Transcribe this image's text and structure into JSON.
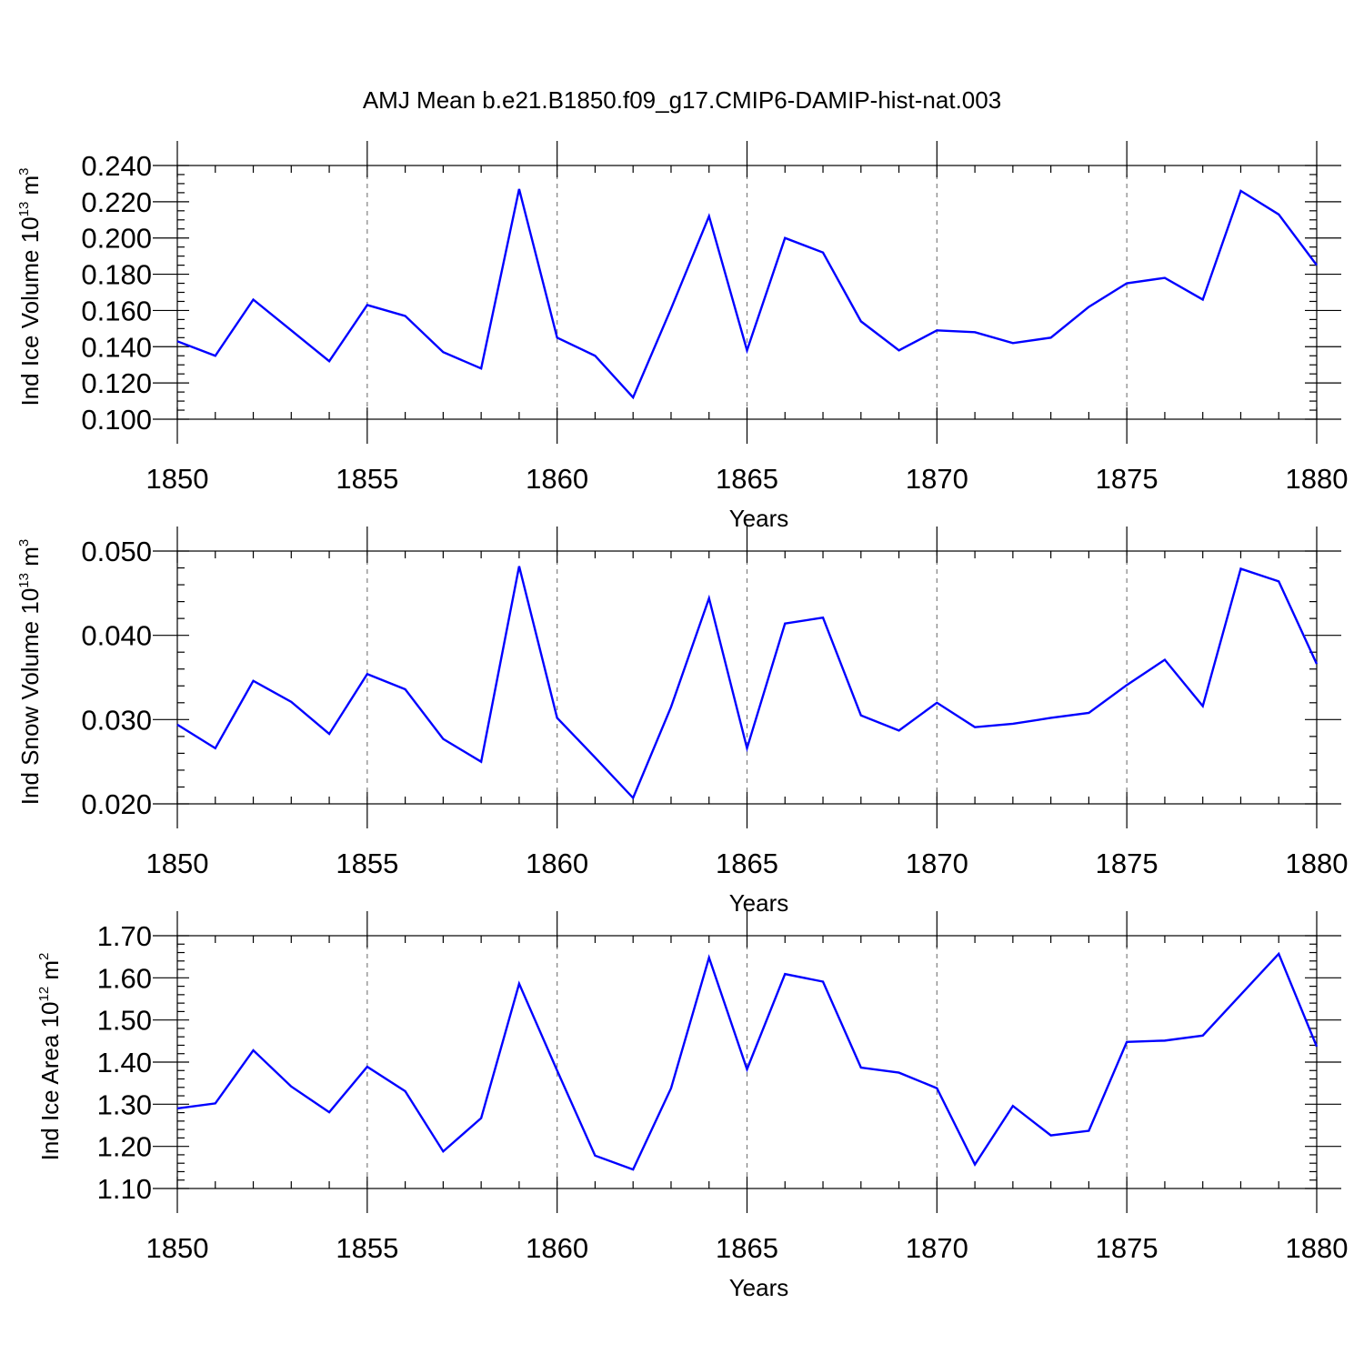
{
  "title": "AMJ Mean b.e21.B1850.f09_g17.CMIP6-DAMIP-hist-nat.003",
  "colors": {
    "line": "#0000ff",
    "axis": "#000000",
    "grid": "#808080",
    "background": "#ffffff"
  },
  "chart_data": [
    {
      "type": "line",
      "xlabel": "Years",
      "ylabel_parts": {
        "base": "Ind Ice Volume 10",
        "sup": "13",
        "unit": " m",
        "unit_sup": "3"
      },
      "xlim": [
        1850,
        1880
      ],
      "ylim": [
        0.1,
        0.24
      ],
      "x_ticks": [
        1850,
        1855,
        1860,
        1865,
        1870,
        1875,
        1880
      ],
      "x_tick_labels": [
        "1850",
        "1855",
        "1860",
        "1865",
        "1870",
        "1875",
        "1880"
      ],
      "y_ticks": [
        0.1,
        0.12,
        0.14,
        0.16,
        0.18,
        0.2,
        0.22,
        0.24
      ],
      "y_tick_labels": [
        "0.100",
        "0.120",
        "0.140",
        "0.160",
        "0.180",
        "0.200",
        "0.220",
        "0.240"
      ],
      "y_minor_step": 0.005,
      "grid": "vertical-dashed-at-major-x",
      "series": [
        {
          "name": "Ind Ice Volume",
          "x": [
            1850,
            1851,
            1852,
            1853,
            1854,
            1855,
            1856,
            1857,
            1858,
            1859,
            1860,
            1861,
            1862,
            1863,
            1864,
            1865,
            1866,
            1867,
            1868,
            1869,
            1870,
            1871,
            1872,
            1873,
            1874,
            1875,
            1876,
            1877,
            1878,
            1879,
            1880
          ],
          "values": [
            0.143,
            0.135,
            0.166,
            0.149,
            0.132,
            0.163,
            0.157,
            0.137,
            0.128,
            0.227,
            0.145,
            0.135,
            0.112,
            0.161,
            0.212,
            0.138,
            0.2,
            0.192,
            0.154,
            0.138,
            0.149,
            0.148,
            0.142,
            0.145,
            0.162,
            0.175,
            0.178,
            0.166,
            0.226,
            0.213,
            0.185
          ]
        }
      ]
    },
    {
      "type": "line",
      "xlabel": "Years",
      "ylabel_parts": {
        "base": "Ind Snow Volume 10",
        "sup": "13",
        "unit": " m",
        "unit_sup": "3"
      },
      "xlim": [
        1850,
        1880
      ],
      "ylim": [
        0.02,
        0.05
      ],
      "x_ticks": [
        1850,
        1855,
        1860,
        1865,
        1870,
        1875,
        1880
      ],
      "x_tick_labels": [
        "1850",
        "1855",
        "1860",
        "1865",
        "1870",
        "1875",
        "1880"
      ],
      "y_ticks": [
        0.02,
        0.03,
        0.04,
        0.05
      ],
      "y_tick_labels": [
        "0.020",
        "0.030",
        "0.040",
        "0.050"
      ],
      "y_minor_step": 0.002,
      "grid": "vertical-dashed-at-major-x",
      "series": [
        {
          "name": "Ind Snow Volume",
          "x": [
            1850,
            1851,
            1852,
            1853,
            1854,
            1855,
            1856,
            1857,
            1858,
            1859,
            1860,
            1861,
            1862,
            1863,
            1864,
            1865,
            1866,
            1867,
            1868,
            1869,
            1870,
            1871,
            1872,
            1873,
            1874,
            1875,
            1876,
            1877,
            1878,
            1879,
            1880
          ],
          "values": [
            0.0294,
            0.0266,
            0.0346,
            0.0321,
            0.0283,
            0.0354,
            0.0336,
            0.0277,
            0.025,
            0.0482,
            0.0302,
            0.0255,
            0.0207,
            0.0315,
            0.0444,
            0.0266,
            0.0414,
            0.0421,
            0.0305,
            0.0287,
            0.032,
            0.0291,
            0.0295,
            0.0302,
            0.0308,
            0.0341,
            0.0371,
            0.0316,
            0.0479,
            0.0464,
            0.0366
          ]
        }
      ]
    },
    {
      "type": "line",
      "xlabel": "Years",
      "ylabel_parts": {
        "base": "Ind Ice Area 10",
        "sup": "12",
        "unit": " m",
        "unit_sup": "2"
      },
      "xlim": [
        1850,
        1880
      ],
      "ylim": [
        1.1,
        1.7
      ],
      "x_ticks": [
        1850,
        1855,
        1860,
        1865,
        1870,
        1875,
        1880
      ],
      "x_tick_labels": [
        "1850",
        "1855",
        "1860",
        "1865",
        "1870",
        "1875",
        "1880"
      ],
      "y_ticks": [
        1.1,
        1.2,
        1.3,
        1.4,
        1.5,
        1.6,
        1.7
      ],
      "y_tick_labels": [
        "1.10",
        "1.20",
        "1.30",
        "1.40",
        "1.50",
        "1.60",
        "1.70"
      ],
      "y_minor_step": 0.02,
      "grid": "vertical-dashed-at-major-x",
      "series": [
        {
          "name": "Ind Ice Area",
          "x": [
            1850,
            1851,
            1852,
            1853,
            1854,
            1855,
            1856,
            1857,
            1858,
            1859,
            1860,
            1861,
            1862,
            1863,
            1864,
            1865,
            1866,
            1867,
            1868,
            1869,
            1870,
            1871,
            1872,
            1873,
            1874,
            1875,
            1876,
            1877,
            1878,
            1879,
            1880
          ],
          "values": [
            1.29,
            1.302,
            1.428,
            1.342,
            1.281,
            1.389,
            1.331,
            1.188,
            1.267,
            1.586,
            1.38,
            1.178,
            1.145,
            1.338,
            1.648,
            1.383,
            1.609,
            1.591,
            1.387,
            1.375,
            1.338,
            1.157,
            1.296,
            1.226,
            1.237,
            1.448,
            1.451,
            1.463,
            1.56,
            1.657,
            1.437
          ]
        }
      ]
    }
  ]
}
